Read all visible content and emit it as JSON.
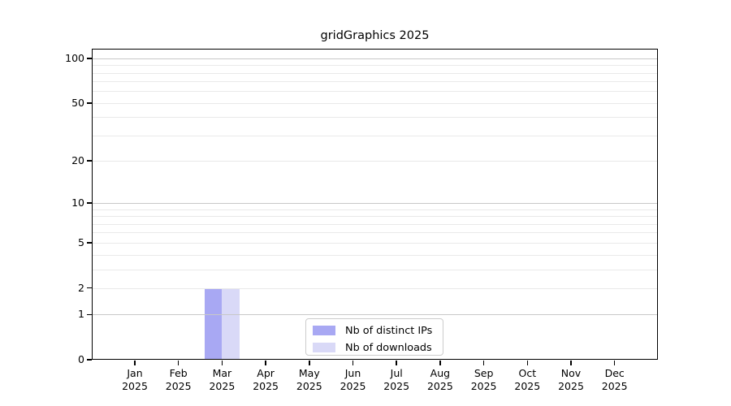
{
  "chart_data": {
    "type": "bar",
    "title": "gridGraphics 2025",
    "categories": [
      "Jan",
      "Feb",
      "Mar",
      "Apr",
      "May",
      "Jun",
      "Jul",
      "Aug",
      "Sep",
      "Oct",
      "Nov",
      "Dec"
    ],
    "category_year": "2025",
    "series": [
      {
        "name": "Nb of distinct IPs",
        "color": "#a8a8f3",
        "values": [
          0,
          0,
          2,
          0,
          0,
          0,
          0,
          0,
          0,
          0,
          0,
          0
        ]
      },
      {
        "name": "Nb of downloads",
        "color": "#d9d9f7",
        "values": [
          0,
          0,
          2,
          0,
          0,
          0,
          0,
          0,
          0,
          0,
          0,
          0
        ]
      }
    ],
    "yticks": [
      0,
      1,
      2,
      5,
      10,
      20,
      50,
      100
    ],
    "y_scale": "log10(1+x)",
    "ymax": 116,
    "major_gridlines": [
      1,
      10,
      100
    ],
    "minor_gridlines": [
      2,
      3,
      4,
      5,
      6,
      7,
      8,
      9,
      20,
      30,
      40,
      50,
      60,
      70,
      80,
      90
    ],
    "grid": true,
    "legend_position": "bottom-center-inside",
    "colors": {
      "axis": "#000000",
      "major_grid": "#c8c8c8",
      "minor_grid": "#e9e9e9",
      "legend_border": "#cccccc",
      "background": "#ffffff"
    }
  }
}
